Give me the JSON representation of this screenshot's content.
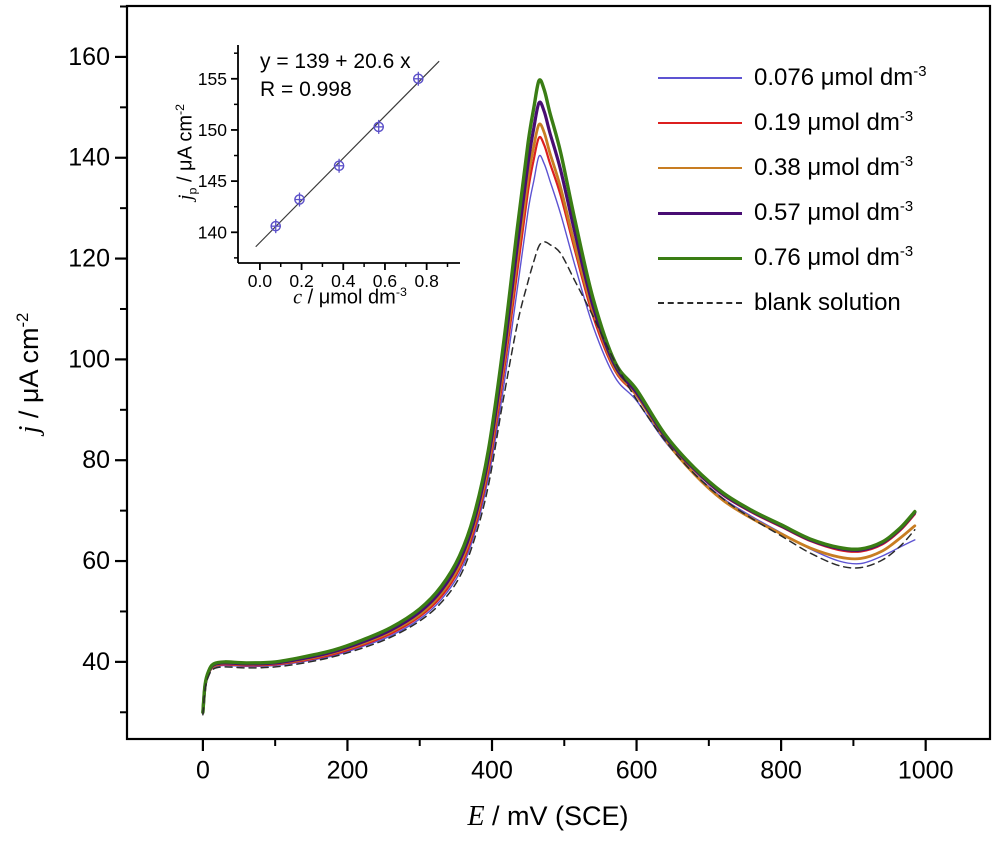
{
  "chart_data": {
    "type": "line",
    "title": "",
    "xlabel": {
      "italic": "E",
      "rest": " / mV (SCE)"
    },
    "ylabel": {
      "italic": "j",
      "rest": " / μA cm",
      "sup": "-2"
    },
    "xlim": [
      -105,
      1089
    ],
    "ylim": [
      24.7,
      170.1
    ],
    "x_major_ticks": [
      0,
      200,
      400,
      600,
      800,
      1000
    ],
    "x_minor_ticks": [
      100,
      300,
      500,
      700,
      900
    ],
    "y_major_ticks": [
      40,
      60,
      80,
      100,
      120,
      140,
      160
    ],
    "y_minor_ticks": [
      30,
      50,
      70,
      90,
      110,
      130,
      150,
      170
    ],
    "grid": false,
    "legend_position": "top-right",
    "x": [
      0,
      3,
      8,
      15,
      30,
      60,
      100,
      140,
      180,
      220,
      260,
      300,
      330,
      355,
      375,
      395,
      415,
      435,
      450,
      458,
      465,
      472,
      480,
      495,
      515,
      540,
      570,
      600,
      640,
      680,
      720,
      760,
      800,
      840,
      880,
      910,
      940,
      965,
      985
    ],
    "series": [
      {
        "name": "0.076 μmol dm-3",
        "label_value": "0.076",
        "label_unit": " μmol dm",
        "label_sup": "-3",
        "color": "#5d53d2",
        "width": 1.4,
        "dash": "",
        "values": [
          30,
          34.8,
          37.5,
          38.9,
          39.3,
          39.1,
          39.3,
          40.1,
          41.2,
          43,
          45.2,
          48.5,
          52.4,
          57.6,
          65,
          76.5,
          93.5,
          114,
          129.5,
          135.5,
          140.3,
          138.9,
          135.5,
          128.8,
          118.5,
          106.5,
          96.5,
          91.8,
          83.6,
          77.4,
          72.4,
          68.8,
          65.6,
          62.4,
          60,
          59.5,
          61,
          62.8,
          64.2
        ]
      },
      {
        "name": "0.19 μmol dm-3",
        "label_value": "0.19",
        "label_unit": " μmol dm",
        "label_sup": "-3",
        "color": "#dc1f1f",
        "width": 2.2,
        "dash": "",
        "values": [
          30,
          35,
          37.7,
          39.1,
          39.5,
          39.3,
          39.5,
          40.3,
          41.5,
          43.3,
          45.6,
          49,
          53,
          58.5,
          66,
          78,
          96,
          117.5,
          133.5,
          139.8,
          144,
          142.6,
          139,
          132.5,
          121.5,
          108.5,
          97.8,
          92.8,
          84.2,
          78,
          73,
          69.6,
          66.8,
          64,
          62.2,
          61.9,
          63.3,
          66.1,
          69.3
        ]
      },
      {
        "name": "0.38 μmol dm-3",
        "label_value": "0.38",
        "label_unit": " μmol dm",
        "label_sup": "-3",
        "color": "#c87d22",
        "width": 2.8,
        "dash": "",
        "values": [
          30,
          35.2,
          37.9,
          39.2,
          39.7,
          39.5,
          39.7,
          40.5,
          41.8,
          43.6,
          46,
          49.4,
          53.6,
          59.2,
          67,
          79.2,
          97.8,
          120,
          136,
          142.4,
          146.6,
          145.1,
          141,
          134,
          122.5,
          109.5,
          98.2,
          93,
          84,
          77.2,
          72,
          68.4,
          65.4,
          62.6,
          60.8,
          60.5,
          62,
          64.6,
          67
        ]
      },
      {
        "name": "0.57 μmol dm-3",
        "label_value": "0.57",
        "label_unit": " μmol dm",
        "label_sup": "-3",
        "color": "#480d73",
        "width": 3.2,
        "dash": "",
        "values": [
          30,
          35.3,
          38,
          39.4,
          39.8,
          39.6,
          39.8,
          40.7,
          42,
          43.9,
          46.3,
          49.9,
          54.2,
          60,
          67.8,
          80.5,
          99.5,
          122.5,
          139,
          146,
          150.9,
          149.3,
          145,
          137.5,
          125,
          110.5,
          98.8,
          93.4,
          84.6,
          78.2,
          73.2,
          69.8,
          67,
          64.2,
          62.5,
          62.2,
          63.6,
          66.4,
          69.6
        ]
      },
      {
        "name": "0.76 μmol dm-3",
        "label_value": "0.76",
        "label_unit": " μmol dm",
        "label_sup": "-3",
        "color": "#3a7d14",
        "width": 3.4,
        "dash": "",
        "values": [
          30,
          35.5,
          38.2,
          39.6,
          40,
          39.8,
          40,
          41,
          42.3,
          44.3,
          46.8,
          50.5,
          55,
          61,
          69,
          82,
          102,
          126,
          143,
          150,
          155.3,
          153.6,
          149,
          141,
          127.5,
          112,
          99.5,
          94,
          85,
          78.5,
          73.5,
          70,
          67.2,
          64.4,
          62.7,
          62.4,
          63.8,
          66.6,
          69.8
        ]
      },
      {
        "name": "blank solution",
        "label_value": "blank solution",
        "label_unit": "",
        "label_sup": "",
        "color": "#2b2b2b",
        "width": 1.5,
        "dash": "7,5",
        "values": [
          29.5,
          34.5,
          37.2,
          38.6,
          39,
          38.8,
          39,
          39.8,
          41,
          42.7,
          44.9,
          48.1,
          51.8,
          56.8,
          64,
          75,
          91.5,
          107,
          115.5,
          119.5,
          122.5,
          123.3,
          122.8,
          121,
          115.5,
          108.5,
          99.5,
          92,
          83.8,
          77.3,
          72.3,
          68.4,
          65,
          61.6,
          59.1,
          58.7,
          60.2,
          63,
          66.2
        ]
      }
    ]
  },
  "inset": {
    "type": "scatter",
    "equation_line1": "y = 139 + 20.6 x",
    "equation_line2": "R = 0.998",
    "xlabel": {
      "italic": "c",
      "rest": " / μmol dm",
      "sup": "-3"
    },
    "ylabel": {
      "italic": "j",
      "sub": "p",
      "rest": " / μA cm",
      "sup": "-2"
    },
    "xlim": [
      -0.105,
      0.96
    ],
    "ylim": [
      137.0,
      158.3
    ],
    "x_major_ticks": [
      0.0,
      0.2,
      0.4,
      0.6,
      0.8
    ],
    "x_minor_ticks": [
      0.1,
      0.3,
      0.5,
      0.7,
      0.9
    ],
    "y_major_ticks": [
      140,
      145,
      150,
      155
    ],
    "y_minor_ticks": [
      137.5,
      142.5,
      147.5,
      152.5,
      157.5
    ],
    "points_x": [
      0.076,
      0.19,
      0.38,
      0.57,
      0.76
    ],
    "points_y": [
      140.6,
      143.2,
      146.5,
      150.3,
      155.0
    ],
    "fit": {
      "intercept": 139,
      "slope": 20.6,
      "x_start": -0.02,
      "x_end": 0.86
    },
    "marker_color": "#5b50c8",
    "fit_line_color": "#3a3a3a"
  },
  "frame_color": "#000000"
}
